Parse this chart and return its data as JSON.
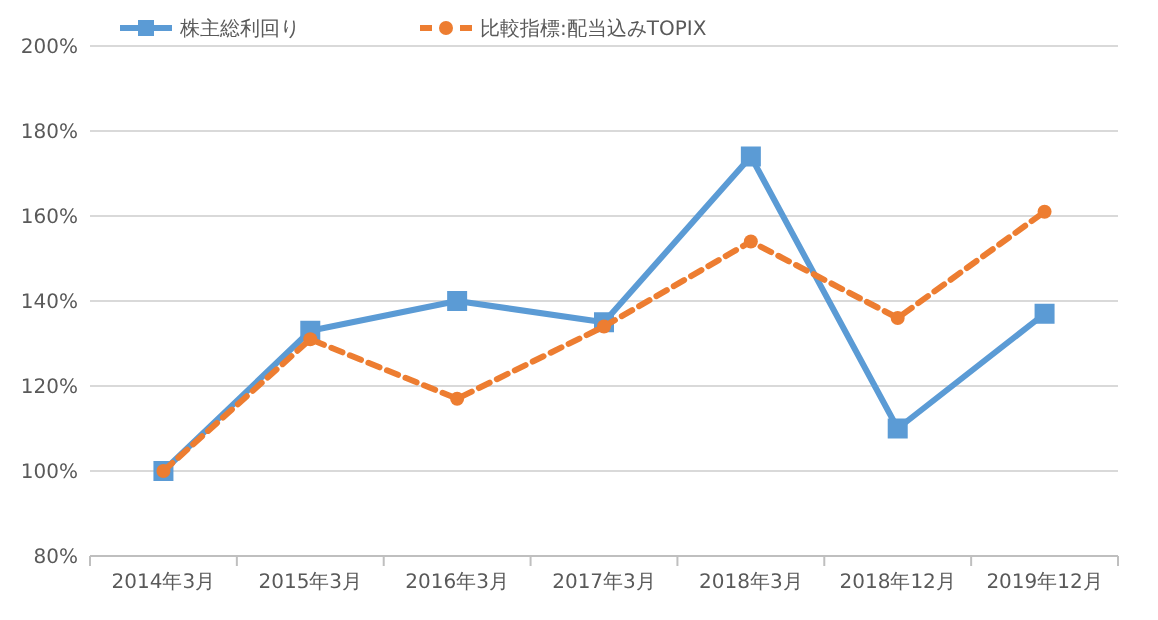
{
  "chart_data": {
    "type": "line",
    "categories": [
      "2014年3月",
      "2015年3月",
      "2016年3月",
      "2017年3月",
      "2018年3月",
      "2018年12月",
      "2019年12月"
    ],
    "series": [
      {
        "name": "株主総利回り",
        "color": "#5b9bd5",
        "marker": "square",
        "line_style": "solid",
        "values": [
          100,
          133,
          140,
          135,
          174,
          110,
          137
        ]
      },
      {
        "name": "比較指標:配当込みTOPIX",
        "color": "#ed7d31",
        "marker": "circle",
        "line_style": "dashed",
        "values": [
          100,
          131,
          117,
          134,
          154,
          136,
          161
        ]
      }
    ],
    "ylim": [
      80,
      200
    ],
    "yticks": [
      {
        "value": 80,
        "label": "80%"
      },
      {
        "value": 100,
        "label": "100%"
      },
      {
        "value": 120,
        "label": "120%"
      },
      {
        "value": 140,
        "label": "140%"
      },
      {
        "value": 160,
        "label": "160%"
      },
      {
        "value": 180,
        "label": "180%"
      },
      {
        "value": 200,
        "label": "200%"
      }
    ],
    "grid": "y",
    "legend": "top left"
  }
}
